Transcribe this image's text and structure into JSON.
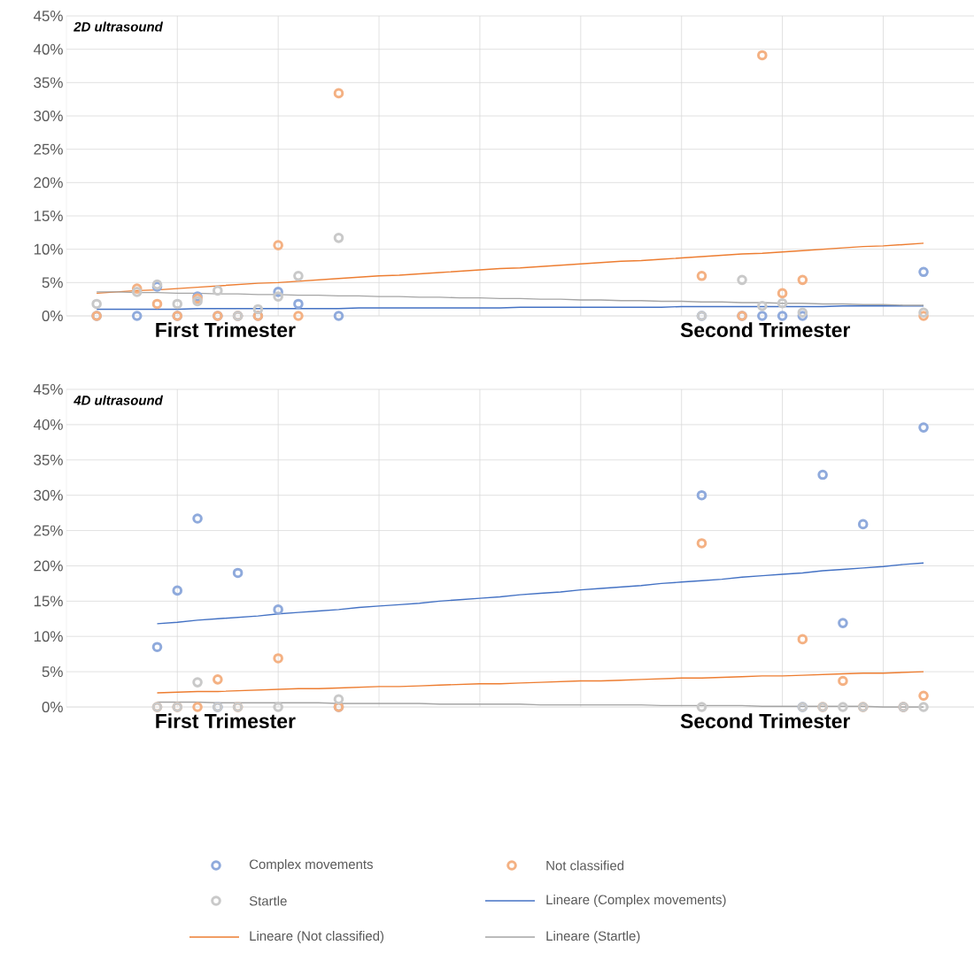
{
  "chart_data": [
    {
      "type": "scatter",
      "title": "2D ultrasound",
      "annotations": [
        "First Trimester",
        "Second Trimester"
      ],
      "categories": [
        null,
        null,
        null,
        null,
        null,
        null,
        null,
        null,
        null,
        null,
        null,
        null,
        null,
        null,
        null,
        null,
        null,
        null,
        null,
        null,
        null,
        null,
        null,
        null,
        null,
        null,
        null,
        null,
        null,
        null,
        null,
        null,
        null,
        null,
        null,
        null,
        null,
        null,
        null,
        null,
        null,
        null,
        null,
        null,
        null
      ],
      "ylim": [
        0,
        45
      ],
      "yticks": [
        {
          "value": 0,
          "label": "0%"
        },
        {
          "value": 5,
          "label": "5%"
        },
        {
          "value": 10,
          "label": "10%"
        },
        {
          "value": 15,
          "label": "15%"
        },
        {
          "value": 20,
          "label": "20%"
        },
        {
          "value": 25,
          "label": "25%"
        },
        {
          "value": 30,
          "label": "30%"
        },
        {
          "value": 35,
          "label": "35%"
        },
        {
          "value": 40,
          "label": "40%"
        },
        {
          "value": 45,
          "label": "45%"
        }
      ],
      "grid": true,
      "series": [
        {
          "color": "#8faadc",
          "marker": "circle",
          "values": [
            null,
            0,
            null,
            0,
            4.4,
            0,
            2.9,
            0,
            0,
            0,
            3.6,
            1.8,
            null,
            0,
            null,
            null,
            null,
            null,
            null,
            null,
            null,
            null,
            null,
            null,
            null,
            null,
            null,
            null,
            null,
            null,
            null,
            0,
            null,
            0,
            0,
            0,
            0,
            null,
            null,
            null,
            null,
            null,
            6.6,
            null,
            null
          ]
        },
        {
          "color": "#f4b183",
          "marker": "circle",
          "values": [
            null,
            0,
            null,
            4.1,
            1.8,
            0,
            2.6,
            0,
            0,
            0,
            10.6,
            0,
            null,
            33.4,
            null,
            null,
            null,
            null,
            null,
            null,
            null,
            null,
            null,
            null,
            null,
            null,
            null,
            null,
            null,
            null,
            null,
            6.0,
            null,
            0,
            39.1,
            3.4,
            5.4,
            null,
            null,
            null,
            null,
            null,
            0,
            null,
            null
          ]
        },
        {
          "color": "#c9c9c9",
          "marker": "circle",
          "values": [
            null,
            1.8,
            null,
            3.6,
            4.7,
            1.8,
            2.2,
            3.8,
            0,
            1.0,
            2.9,
            6.0,
            null,
            11.7,
            null,
            null,
            null,
            null,
            null,
            null,
            null,
            null,
            null,
            null,
            null,
            null,
            null,
            null,
            null,
            null,
            null,
            0,
            null,
            5.4,
            1.5,
            1.9,
            0.5,
            null,
            null,
            null,
            null,
            null,
            0.5,
            null,
            null
          ]
        },
        {
          "type": "line",
          "color": "#4472c4",
          "line_style": "solid",
          "values": [
            null,
            1.0,
            1.0,
            1.0,
            1.0,
            1.0,
            1.1,
            1.1,
            1.1,
            1.1,
            1.1,
            1.1,
            1.1,
            1.1,
            1.2,
            1.2,
            1.2,
            1.2,
            1.2,
            1.2,
            1.2,
            1.2,
            1.3,
            1.3,
            1.3,
            1.3,
            1.3,
            1.3,
            1.3,
            1.3,
            1.4,
            1.4,
            1.4,
            1.4,
            1.4,
            1.4,
            1.4,
            1.4,
            1.5,
            1.5,
            1.5,
            1.5,
            1.5,
            null,
            null
          ]
        },
        {
          "type": "line",
          "color": "#ed7d31",
          "line_style": "solid",
          "values": [
            null,
            3.4,
            3.6,
            3.8,
            3.9,
            4.1,
            4.3,
            4.5,
            4.7,
            4.9,
            5.0,
            5.2,
            5.4,
            5.6,
            5.8,
            6.0,
            6.1,
            6.3,
            6.5,
            6.7,
            6.9,
            7.1,
            7.2,
            7.4,
            7.6,
            7.8,
            8.0,
            8.2,
            8.3,
            8.5,
            8.7,
            8.9,
            9.1,
            9.3,
            9.4,
            9.6,
            9.8,
            10.0,
            10.2,
            10.4,
            10.5,
            10.7,
            10.9,
            null,
            null
          ]
        },
        {
          "type": "line",
          "color": "#a5a5a5",
          "line_style": "solid",
          "values": [
            null,
            3.6,
            3.6,
            3.5,
            3.5,
            3.4,
            3.4,
            3.3,
            3.3,
            3.2,
            3.2,
            3.1,
            3.1,
            3.0,
            3.0,
            2.9,
            2.9,
            2.8,
            2.8,
            2.7,
            2.7,
            2.6,
            2.6,
            2.5,
            2.5,
            2.4,
            2.4,
            2.3,
            2.3,
            2.2,
            2.2,
            2.1,
            2.1,
            2.0,
            2.0,
            1.9,
            1.9,
            1.8,
            1.8,
            1.7,
            1.7,
            1.6,
            1.6,
            null,
            null
          ]
        }
      ]
    },
    {
      "type": "scatter",
      "title": "4D ultrasound",
      "annotations": [
        "First Trimester",
        "Second Trimester"
      ],
      "categories": [
        null,
        null,
        null,
        null,
        null,
        null,
        null,
        null,
        null,
        null,
        null,
        null,
        null,
        null,
        null,
        null,
        null,
        null,
        null,
        null,
        null,
        null,
        null,
        null,
        null,
        null,
        null,
        null,
        null,
        null,
        null,
        null,
        null,
        null,
        null,
        null,
        null,
        null,
        null,
        null,
        null,
        null,
        null,
        null,
        null
      ],
      "ylim": [
        0,
        45
      ],
      "yticks": [
        {
          "value": 0,
          "label": "0%"
        },
        {
          "value": 5,
          "label": "5%"
        },
        {
          "value": 10,
          "label": "10%"
        },
        {
          "value": 15,
          "label": "15%"
        },
        {
          "value": 20,
          "label": "20%"
        },
        {
          "value": 25,
          "label": "25%"
        },
        {
          "value": 30,
          "label": "30%"
        },
        {
          "value": 35,
          "label": "35%"
        },
        {
          "value": 40,
          "label": "40%"
        },
        {
          "value": 45,
          "label": "45%"
        }
      ],
      "grid": true,
      "legend": "bottom",
      "series": [
        {
          "name": "Complex movements",
          "color": "#8faadc",
          "marker": "circle",
          "values": [
            null,
            null,
            null,
            null,
            8.5,
            16.5,
            26.7,
            0,
            19.0,
            null,
            13.8,
            null,
            null,
            0,
            null,
            null,
            null,
            null,
            null,
            null,
            null,
            null,
            null,
            null,
            null,
            null,
            null,
            null,
            null,
            null,
            null,
            30.0,
            null,
            null,
            null,
            null,
            0,
            32.9,
            11.9,
            25.9,
            null,
            0,
            39.6,
            null,
            null
          ]
        },
        {
          "name": "Not classified",
          "color": "#f4b183",
          "marker": "circle",
          "values": [
            null,
            null,
            null,
            null,
            0,
            0,
            0,
            3.9,
            0,
            null,
            6.9,
            null,
            null,
            0,
            null,
            null,
            null,
            null,
            null,
            null,
            null,
            null,
            null,
            null,
            null,
            null,
            null,
            null,
            null,
            null,
            null,
            23.2,
            null,
            null,
            null,
            null,
            9.6,
            0,
            3.7,
            0,
            null,
            0,
            1.6,
            null,
            null
          ]
        },
        {
          "name": "Startle",
          "color": "#c9c9c9",
          "marker": "circle",
          "values": [
            null,
            null,
            null,
            null,
            0,
            0,
            3.5,
            0,
            0,
            null,
            0,
            null,
            null,
            1.1,
            null,
            null,
            null,
            null,
            null,
            null,
            null,
            null,
            null,
            null,
            null,
            null,
            null,
            null,
            null,
            null,
            null,
            0,
            null,
            null,
            null,
            null,
            0,
            0,
            0,
            0,
            null,
            0,
            0,
            null,
            null
          ]
        },
        {
          "name": "Lineare (Complex movements)",
          "type": "line",
          "color": "#4472c4",
          "line_style": "solid",
          "values": [
            null,
            null,
            null,
            null,
            11.8,
            12.0,
            12.3,
            12.5,
            12.7,
            12.9,
            13.2,
            13.4,
            13.6,
            13.8,
            14.1,
            14.3,
            14.5,
            14.7,
            15.0,
            15.2,
            15.4,
            15.6,
            15.9,
            16.1,
            16.3,
            16.6,
            16.8,
            17.0,
            17.2,
            17.5,
            17.7,
            17.9,
            18.1,
            18.4,
            18.6,
            18.8,
            19.0,
            19.3,
            19.5,
            19.7,
            19.9,
            20.2,
            20.4,
            null,
            null
          ]
        },
        {
          "name": "Lineare (Not classified)",
          "type": "line",
          "color": "#ed7d31",
          "line_style": "solid",
          "values": [
            null,
            null,
            null,
            null,
            2.0,
            2.1,
            2.2,
            2.2,
            2.3,
            2.4,
            2.5,
            2.6,
            2.6,
            2.7,
            2.8,
            2.9,
            2.9,
            3.0,
            3.1,
            3.2,
            3.3,
            3.3,
            3.4,
            3.5,
            3.6,
            3.7,
            3.7,
            3.8,
            3.9,
            4.0,
            4.1,
            4.1,
            4.2,
            4.3,
            4.4,
            4.4,
            4.5,
            4.6,
            4.7,
            4.8,
            4.8,
            4.9,
            5.0,
            null,
            null
          ]
        },
        {
          "name": "Lineare (Startle)",
          "type": "line",
          "color": "#a5a5a5",
          "line_style": "solid",
          "values": [
            null,
            null,
            null,
            null,
            0.7,
            0.7,
            0.7,
            0.6,
            0.6,
            0.6,
            0.6,
            0.6,
            0.6,
            0.5,
            0.5,
            0.5,
            0.5,
            0.5,
            0.4,
            0.4,
            0.4,
            0.4,
            0.4,
            0.3,
            0.3,
            0.3,
            0.3,
            0.3,
            0.3,
            0.2,
            0.2,
            0.2,
            0.2,
            0.2,
            0.1,
            0.1,
            0.1,
            0.1,
            0.1,
            0.1,
            0,
            0,
            0,
            null,
            null
          ]
        }
      ]
    }
  ]
}
